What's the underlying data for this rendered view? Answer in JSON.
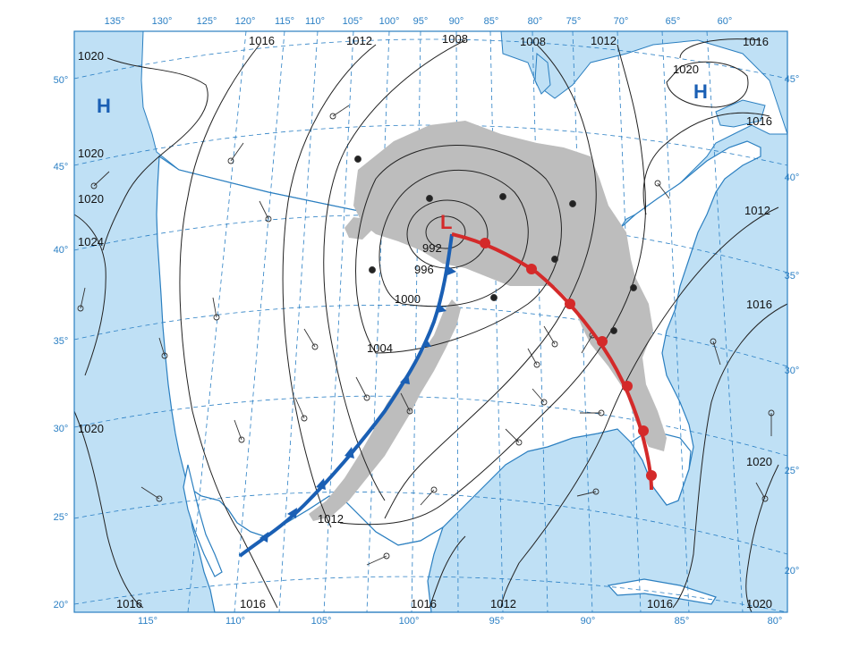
{
  "map": {
    "colors": {
      "ocean": "#bfe0f5",
      "land": "#ffffff",
      "border": "#2b7fc0",
      "frame": "#2b7fc0",
      "precip": "#bdbdbd",
      "isobar": "#222222",
      "cold_front": "#1a5fb4",
      "warm_front": "#d42a2a",
      "high_label": "#1a5fb4",
      "low_label": "#d42a2a",
      "degree_label": "#2a7fc4"
    },
    "top_longitudes": [
      "135°",
      "130°",
      "125°",
      "120°",
      "115°",
      "110°",
      "105°",
      "100°",
      "95°",
      "90°",
      "85°",
      "80°",
      "75°",
      "70°",
      "65°",
      "60°"
    ],
    "bottom_longitudes": [
      "115°",
      "110°",
      "105°",
      "100°",
      "95°",
      "90°",
      "85°",
      "80°"
    ],
    "left_latitudes": [
      "50°",
      "45°",
      "40°",
      "35°",
      "30°",
      "25°",
      "20°"
    ],
    "right_latitudes": [
      "45°",
      "40°",
      "35°",
      "30°",
      "25°",
      "20°"
    ],
    "isobar_labels": {
      "top": [
        "1016",
        "1012",
        "1008",
        "1008",
        "1012",
        "1016"
      ],
      "west": [
        "1020",
        "1020",
        "1020",
        "1024",
        "1020"
      ],
      "low_rings": [
        "992",
        "996",
        "1000",
        "1004",
        "1012"
      ],
      "bottom": [
        "1016",
        "1016",
        "1016",
        "1012",
        "1016",
        "1020"
      ],
      "east": [
        "1016",
        "1012",
        "1016",
        "1020"
      ],
      "northeast_high": "1020"
    },
    "pressure_centers": {
      "west_high": "H",
      "northeast_high": "H",
      "low": "L"
    },
    "fronts": {
      "cold": "cold-front",
      "warm": "warm-front"
    }
  }
}
